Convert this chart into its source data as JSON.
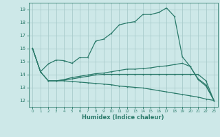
{
  "title": "",
  "xlabel": "Humidex (Indice chaleur)",
  "background_color": "#cde8e8",
  "grid_color": "#aacccc",
  "line_color": "#2a7a6a",
  "xlim": [
    -0.5,
    23.5
  ],
  "ylim": [
    11.5,
    19.5
  ],
  "yticks": [
    12,
    13,
    14,
    15,
    16,
    17,
    18,
    19
  ],
  "xticks": [
    0,
    1,
    2,
    3,
    4,
    5,
    6,
    7,
    8,
    9,
    10,
    11,
    12,
    13,
    14,
    15,
    16,
    17,
    18,
    19,
    20,
    21,
    22,
    23
  ],
  "line1_x": [
    0,
    1,
    2,
    3,
    4,
    5,
    6,
    7,
    8,
    9,
    10,
    11,
    12,
    13,
    14,
    15,
    16,
    17,
    18,
    19,
    20,
    21,
    22,
    23
  ],
  "line1_y": [
    16.0,
    14.2,
    14.8,
    15.1,
    15.05,
    14.85,
    15.3,
    15.3,
    16.55,
    16.7,
    17.15,
    17.8,
    17.95,
    18.05,
    18.6,
    18.6,
    18.75,
    19.1,
    18.45,
    15.35,
    14.6,
    13.6,
    13.1,
    12.0
  ],
  "line2_x": [
    0,
    1,
    2,
    3,
    4,
    5,
    6,
    7,
    8,
    9,
    10,
    11,
    12,
    13,
    14,
    15,
    16,
    17,
    18,
    19,
    20,
    21,
    22,
    23
  ],
  "line2_y": [
    16.0,
    14.2,
    13.5,
    13.5,
    13.6,
    13.75,
    13.85,
    13.95,
    14.05,
    14.1,
    14.2,
    14.3,
    14.4,
    14.4,
    14.45,
    14.5,
    14.6,
    14.65,
    14.75,
    14.85,
    14.6,
    13.65,
    13.2,
    12.0
  ],
  "line3_x": [
    0,
    1,
    2,
    3,
    4,
    5,
    6,
    7,
    8,
    9,
    10,
    11,
    12,
    13,
    14,
    15,
    16,
    17,
    18,
    19,
    20,
    21,
    22,
    23
  ],
  "line3_y": [
    16.0,
    14.2,
    13.5,
    13.5,
    13.55,
    13.65,
    13.75,
    13.85,
    13.95,
    14.0,
    14.0,
    14.0,
    14.0,
    14.0,
    14.0,
    14.0,
    14.0,
    14.0,
    14.0,
    14.0,
    14.0,
    14.0,
    13.5,
    12.0
  ],
  "line4_x": [
    2,
    3,
    4,
    5,
    6,
    7,
    8,
    9,
    10,
    11,
    12,
    13,
    14,
    15,
    16,
    17,
    18,
    19,
    20,
    21,
    22,
    23
  ],
  "line4_y": [
    13.5,
    13.5,
    13.5,
    13.45,
    13.4,
    13.35,
    13.3,
    13.25,
    13.2,
    13.1,
    13.05,
    13.0,
    12.95,
    12.85,
    12.75,
    12.65,
    12.55,
    12.45,
    12.35,
    12.25,
    12.1,
    12.0
  ]
}
